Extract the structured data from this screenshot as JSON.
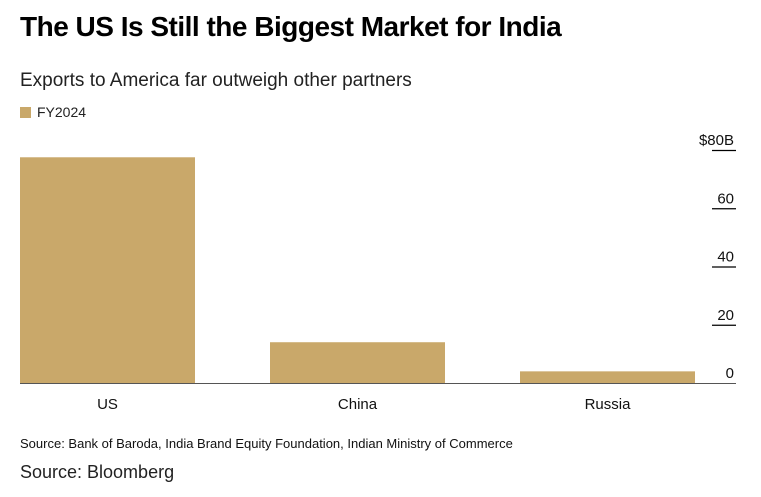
{
  "header": {
    "title": "The US Is Still the Biggest Market for India",
    "subtitle": "Exports to America far outweigh other partners"
  },
  "footer": {
    "source": "Source: Bank of Baroda, India Brand Equity Foundation, Indian Ministry of Commerce",
    "credit": "Source: Bloomberg"
  },
  "colors": {
    "bar": "#c9a86a",
    "axis": "#000000",
    "text": "#222222"
  },
  "chart_data": {
    "type": "bar",
    "title": "The US Is Still the Biggest Market for India",
    "subtitle": "Exports to America far outweigh other partners",
    "categories": [
      "US",
      "China",
      "Russia"
    ],
    "series": [
      {
        "name": "FY2024",
        "values": [
          77.5,
          14,
          4
        ]
      }
    ],
    "ylim": [
      0,
      80
    ],
    "yticks": [
      0,
      20,
      40,
      60,
      80
    ],
    "ytick_labels": [
      "0",
      "20",
      "40",
      "60",
      "$80B"
    ],
    "y_axis_side": "right",
    "grid": false,
    "legend": "top-left"
  }
}
